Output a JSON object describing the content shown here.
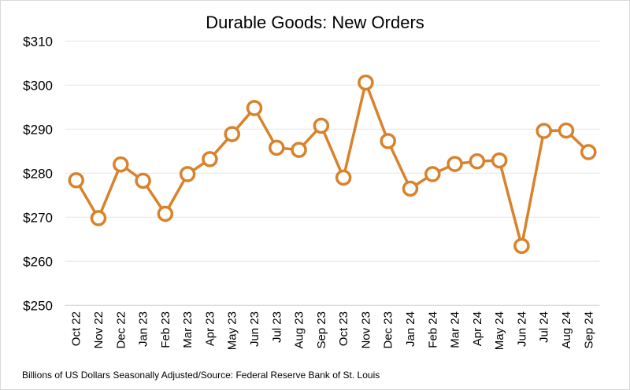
{
  "chart_data": {
    "type": "line",
    "title": "Durable Goods: New Orders",
    "xlabel": "",
    "ylabel": "",
    "footnote": "Billions of US Dollars Seasonally Adjusted/Source: Federal Reserve Bank of St. Louis",
    "categories": [
      "Oct 22",
      "Nov 22",
      "Dec 22",
      "Jan 23",
      "Feb 23",
      "Mar 23",
      "Apr 23",
      "May 23",
      "Jun 23",
      "Jul 23",
      "Aug 23",
      "Sep 23",
      "Oct 23",
      "Nov 23",
      "Dec 23",
      "Jan 24",
      "Feb 24",
      "Mar 24",
      "Apr 24",
      "May 24",
      "Jun 24",
      "Jul 24",
      "Aug 24",
      "Sep 24"
    ],
    "series": [
      {
        "values": [
          278.4,
          269.8,
          282.0,
          278.3,
          270.8,
          279.8,
          283.2,
          288.9,
          294.8,
          285.8,
          285.3,
          290.8,
          279.0,
          300.6,
          287.3,
          276.5,
          279.8,
          282.1,
          282.7,
          282.9,
          263.5,
          289.6,
          289.7,
          284.8
        ]
      }
    ],
    "ylim": [
      250,
      310
    ],
    "yticks": [
      250,
      260,
      270,
      280,
      290,
      300,
      310
    ],
    "ytick_labels": [
      "$250",
      "$260",
      "$270",
      "$280",
      "$290",
      "$300",
      "$310"
    ],
    "grid": "horizontal",
    "legend": "none",
    "marker": "hollow circle",
    "colors": {
      "line": "#D9822B",
      "grid": "#e6e6e6",
      "marker_fill": "#ffffff"
    }
  }
}
